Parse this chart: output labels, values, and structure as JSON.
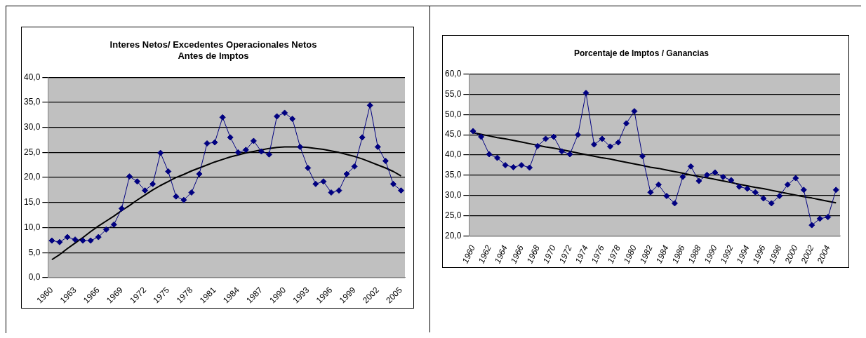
{
  "chart_data": [
    {
      "type": "line",
      "title": "Interes Netos/ Excedentes Operacionales Netos\nAntes de Imptos",
      "categories": [
        "1960",
        null,
        null,
        "1963",
        null,
        null,
        "1966",
        null,
        null,
        "1969",
        null,
        null,
        "1972",
        null,
        null,
        "1975",
        null,
        null,
        "1978",
        null,
        null,
        "1981",
        null,
        null,
        "1984",
        null,
        null,
        "1987",
        null,
        null,
        "1990",
        null,
        null,
        "1993",
        null,
        null,
        "1996",
        null,
        null,
        "1999",
        null,
        null,
        "2002",
        null,
        null,
        "2005"
      ],
      "series": [
        {
          "color": "#000080",
          "marker": "diamond",
          "values": [
            7.4,
            7.1,
            8.1,
            7.6,
            7.4,
            7.4,
            8.1,
            9.6,
            10.6,
            13.8,
            20.2,
            19.2,
            17.4,
            18.7,
            24.9,
            21.2,
            16.2,
            15.5,
            17.0,
            20.7,
            26.8,
            27.0,
            32.0,
            28.0,
            25.0,
            25.5,
            27.3,
            25.2,
            24.6,
            32.2,
            32.9,
            31.7,
            26.1,
            21.9,
            18.7,
            19.2,
            17.0,
            17.4,
            20.7,
            22.2,
            28.0,
            34.4,
            26.1,
            23.3,
            18.7,
            17.4
          ]
        },
        {
          "type": "line",
          "color": "#000000",
          "marker": "none",
          "values": [
            3.6,
            4.6,
            5.8,
            6.9,
            8.0,
            9.2,
            10.3,
            11.3,
            12.3,
            13.4,
            14.4,
            15.5,
            16.5,
            17.5,
            18.4,
            19.2,
            20.0,
            20.6,
            21.3,
            21.9,
            22.5,
            23.1,
            23.6,
            24.1,
            24.5,
            24.9,
            25.2,
            25.5,
            25.8,
            26.0,
            26.1,
            26.1,
            26.1,
            26.0,
            25.8,
            25.6,
            25.3,
            25.0,
            24.6,
            24.2,
            23.7,
            23.1,
            22.5,
            21.9,
            21.2,
            20.3
          ]
        }
      ],
      "ylim": [
        0,
        40
      ],
      "yticks": [
        {
          "value": 0,
          "label": "0,0"
        },
        {
          "value": 5,
          "label": "5,0"
        },
        {
          "value": 10,
          "label": "10,0"
        },
        {
          "value": 15,
          "label": "15,0"
        },
        {
          "value": 20,
          "label": "20,0"
        },
        {
          "value": 25,
          "label": "25,0"
        },
        {
          "value": 30,
          "label": "30,0"
        },
        {
          "value": 35,
          "label": "35,0"
        },
        {
          "value": 40,
          "label": "40,0"
        }
      ],
      "grid": "y"
    },
    {
      "type": "line",
      "title": "Porcentaje de Imptos / Ganancias",
      "categories": [
        "1960",
        null,
        "1962",
        null,
        "1964",
        null,
        "1966",
        null,
        "1968",
        null,
        "1970",
        null,
        "1972",
        null,
        "1974",
        null,
        "1976",
        null,
        "1978",
        null,
        "1980",
        null,
        "1982",
        null,
        "1984",
        null,
        "1986",
        null,
        "1988",
        null,
        "1990",
        null,
        "1992",
        null,
        "1994",
        null,
        "1996",
        null,
        "1998",
        null,
        "2000",
        null,
        "2002",
        null,
        "2004",
        null
      ],
      "series": [
        {
          "color": "#000080",
          "marker": "diamond",
          "values": [
            45.9,
            44.5,
            40.2,
            39.3,
            37.5,
            37.0,
            37.5,
            36.9,
            42.2,
            44.0,
            44.5,
            40.9,
            40.2,
            45.0,
            55.3,
            42.6,
            44.0,
            42.1,
            43.1,
            47.8,
            50.8,
            39.7,
            30.8,
            32.7,
            29.9,
            28.1,
            34.6,
            37.2,
            33.6,
            35.1,
            35.7,
            34.6,
            33.8,
            32.2,
            31.7,
            30.8,
            29.3,
            28.1,
            29.9,
            32.7,
            34.3,
            31.4,
            22.7,
            24.3,
            24.7,
            31.4
          ]
        },
        {
          "type": "line",
          "color": "#000000",
          "marker": "none",
          "values": [
            45.5,
            45.1,
            44.7,
            44.3,
            44.0,
            43.6,
            43.2,
            42.8,
            42.4,
            42.0,
            41.7,
            41.3,
            40.9,
            40.5,
            40.1,
            39.7,
            39.3,
            39.0,
            38.6,
            38.2,
            37.8,
            37.4,
            37.0,
            36.7,
            36.3,
            35.9,
            35.5,
            35.1,
            34.7,
            34.4,
            34.0,
            33.6,
            33.2,
            32.8,
            32.4,
            32.0,
            31.7,
            31.3,
            30.9,
            30.5,
            30.1,
            29.7,
            29.4,
            29.0,
            28.6,
            28.2
          ]
        }
      ],
      "ylim": [
        20,
        60
      ],
      "yticks": [
        {
          "value": 20,
          "label": "20,0"
        },
        {
          "value": 25,
          "label": "25,0"
        },
        {
          "value": 30,
          "label": "30,0"
        },
        {
          "value": 35,
          "label": "35,0"
        },
        {
          "value": 40,
          "label": "40,0"
        },
        {
          "value": 45,
          "label": "45,0"
        },
        {
          "value": 50,
          "label": "50,0"
        },
        {
          "value": 55,
          "label": "55,0"
        },
        {
          "value": 60,
          "label": "60,0"
        }
      ],
      "grid": "y"
    }
  ]
}
